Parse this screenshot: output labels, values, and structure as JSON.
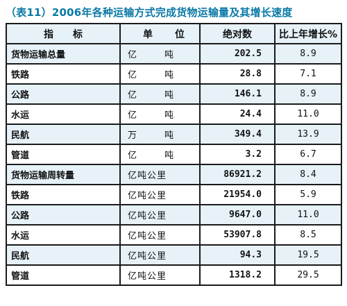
{
  "title": "（表11）2006年各种运输方式完成货物运输量及其增长速度",
  "headers": {
    "item": "指标",
    "unit": "单位",
    "value": "绝对数",
    "growth": "比上年增长%"
  },
  "rows": [
    {
      "name": "货物运输总量",
      "unit": "亿吨",
      "value": "202.5",
      "growth": "8.9"
    },
    {
      "name": "铁路",
      "unit": "亿吨",
      "value": "28.8",
      "growth": "7.1"
    },
    {
      "name": "公路",
      "unit": "亿吨",
      "value": "146.1",
      "growth": "8.9"
    },
    {
      "name": "水运",
      "unit": "亿吨",
      "value": "24.4",
      "growth": "11.0"
    },
    {
      "name": "民航",
      "unit": "万吨",
      "value": "349.4",
      "growth": "13.9"
    },
    {
      "name": "管道",
      "unit": "亿吨",
      "value": "3.2",
      "growth": "6.7"
    },
    {
      "name": "货物运输周转量",
      "unit": "亿吨公里",
      "value": "86921.2",
      "growth": "8.4"
    },
    {
      "name": "铁路",
      "unit": "亿吨公里",
      "value": "21954.0",
      "growth": "5.9"
    },
    {
      "name": "公路",
      "unit": "亿吨公里",
      "value": "9647.0",
      "growth": "11.0"
    },
    {
      "name": "水运",
      "unit": "亿吨公里",
      "value": "53907.8",
      "growth": "8.5"
    },
    {
      "name": "民航",
      "unit": "亿吨公里",
      "value": "94.3",
      "growth": "19.5"
    },
    {
      "name": "管道",
      "unit": "亿吨公里",
      "value": "1318.2",
      "growth": "29.5"
    }
  ]
}
